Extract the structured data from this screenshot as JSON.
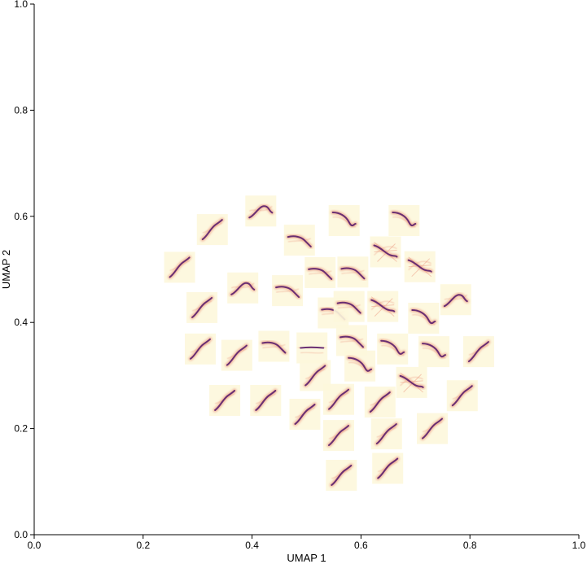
{
  "chart_data": {
    "type": "scatter",
    "xlabel": "UMAP 1",
    "ylabel": "UMAP 2",
    "xlim": [
      0.0,
      1.0
    ],
    "ylim": [
      0.0,
      1.0
    ],
    "xticks": [
      "0.0",
      "0.2",
      "0.4",
      "0.6",
      "0.8",
      "1.0"
    ],
    "yticks": [
      "0.0",
      "0.2",
      "0.4",
      "0.6",
      "0.8",
      "1.0"
    ],
    "grid": false,
    "marker": "thumbnail-image",
    "colors": {
      "background": "#fdf7dc",
      "mid": "#e8836a",
      "dark": "#5a1f6e",
      "axis": "#000000"
    },
    "points": [
      {
        "x": 0.267,
        "y": 0.504,
        "style": "rise"
      },
      {
        "x": 0.327,
        "y": 0.575,
        "style": "rise"
      },
      {
        "x": 0.416,
        "y": 0.61,
        "style": "hump"
      },
      {
        "x": 0.487,
        "y": 0.555,
        "style": "flat-fall"
      },
      {
        "x": 0.569,
        "y": 0.592,
        "style": "fall"
      },
      {
        "x": 0.679,
        "y": 0.592,
        "style": "fall"
      },
      {
        "x": 0.645,
        "y": 0.533,
        "style": "noisy"
      },
      {
        "x": 0.708,
        "y": 0.505,
        "style": "noisy"
      },
      {
        "x": 0.525,
        "y": 0.494,
        "style": "flat-fall"
      },
      {
        "x": 0.585,
        "y": 0.495,
        "style": "flat-fall"
      },
      {
        "x": 0.383,
        "y": 0.465,
        "style": "hump"
      },
      {
        "x": 0.465,
        "y": 0.46,
        "style": "flat-fall"
      },
      {
        "x": 0.549,
        "y": 0.418,
        "style": "flat-fall"
      },
      {
        "x": 0.578,
        "y": 0.43,
        "style": "flat-fall"
      },
      {
        "x": 0.64,
        "y": 0.43,
        "style": "noisy"
      },
      {
        "x": 0.715,
        "y": 0.408,
        "style": "fall"
      },
      {
        "x": 0.774,
        "y": 0.443,
        "style": "hump"
      },
      {
        "x": 0.308,
        "y": 0.428,
        "style": "rise"
      },
      {
        "x": 0.305,
        "y": 0.35,
        "style": "rise"
      },
      {
        "x": 0.372,
        "y": 0.338,
        "style": "rise"
      },
      {
        "x": 0.44,
        "y": 0.355,
        "style": "flat-fall"
      },
      {
        "x": 0.51,
        "y": 0.352,
        "style": "flat"
      },
      {
        "x": 0.583,
        "y": 0.366,
        "style": "flat-fall"
      },
      {
        "x": 0.658,
        "y": 0.35,
        "style": "fall"
      },
      {
        "x": 0.734,
        "y": 0.345,
        "style": "fall"
      },
      {
        "x": 0.816,
        "y": 0.345,
        "style": "rise"
      },
      {
        "x": 0.598,
        "y": 0.318,
        "style": "fall"
      },
      {
        "x": 0.516,
        "y": 0.3,
        "style": "rise"
      },
      {
        "x": 0.693,
        "y": 0.287,
        "style": "noisy"
      },
      {
        "x": 0.35,
        "y": 0.253,
        "style": "rise"
      },
      {
        "x": 0.425,
        "y": 0.253,
        "style": "rise"
      },
      {
        "x": 0.497,
        "y": 0.227,
        "style": "rise"
      },
      {
        "x": 0.559,
        "y": 0.255,
        "style": "rise"
      },
      {
        "x": 0.635,
        "y": 0.25,
        "style": "rise"
      },
      {
        "x": 0.786,
        "y": 0.262,
        "style": "rise"
      },
      {
        "x": 0.559,
        "y": 0.187,
        "style": "rise"
      },
      {
        "x": 0.647,
        "y": 0.19,
        "style": "rise"
      },
      {
        "x": 0.731,
        "y": 0.2,
        "style": "rise"
      },
      {
        "x": 0.564,
        "y": 0.112,
        "style": "rise"
      },
      {
        "x": 0.649,
        "y": 0.125,
        "style": "rise"
      }
    ]
  }
}
